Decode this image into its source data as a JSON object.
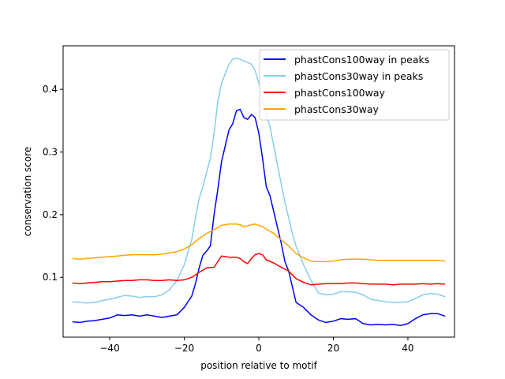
{
  "chart_data": {
    "type": "line",
    "xlabel": "position relative to motif",
    "ylabel": "conservation score",
    "xlim": [
      -52.5,
      52.5
    ],
    "ylim": [
      0.0045,
      0.4695
    ],
    "xticks": [
      -40,
      -20,
      0,
      20,
      40
    ],
    "xtick_labels": [
      "−40",
      "−20",
      "0",
      "20",
      "40"
    ],
    "yticks": [
      0.1,
      0.2,
      0.3,
      0.4
    ],
    "ytick_labels": [
      "0.1",
      "0.2",
      "0.3",
      "0.4"
    ],
    "grid": false,
    "legend_position": "top-right",
    "series": [
      {
        "name": "phastCons100way in peaks",
        "color": "#0000ff",
        "points": [
          [
            -50,
            0.029
          ],
          [
            -48,
            0.028
          ],
          [
            -46,
            0.03
          ],
          [
            -44,
            0.031
          ],
          [
            -42,
            0.033
          ],
          [
            -40,
            0.035
          ],
          [
            -38,
            0.04
          ],
          [
            -36,
            0.039
          ],
          [
            -34,
            0.04
          ],
          [
            -32,
            0.038
          ],
          [
            -30,
            0.04
          ],
          [
            -28,
            0.038
          ],
          [
            -26,
            0.036
          ],
          [
            -24,
            0.038
          ],
          [
            -22,
            0.04
          ],
          [
            -20,
            0.052
          ],
          [
            -18,
            0.07
          ],
          [
            -17,
            0.09
          ],
          [
            -16,
            0.115
          ],
          [
            -15,
            0.135
          ],
          [
            -14,
            0.142
          ],
          [
            -13,
            0.15
          ],
          [
            -12,
            0.2
          ],
          [
            -11,
            0.24
          ],
          [
            -10,
            0.285
          ],
          [
            -9,
            0.31
          ],
          [
            -8,
            0.335
          ],
          [
            -7,
            0.345
          ],
          [
            -6,
            0.366
          ],
          [
            -5,
            0.368
          ],
          [
            -4,
            0.355
          ],
          [
            -3,
            0.352
          ],
          [
            -2,
            0.36
          ],
          [
            -1,
            0.355
          ],
          [
            0,
            0.33
          ],
          [
            1,
            0.29
          ],
          [
            2,
            0.245
          ],
          [
            3,
            0.23
          ],
          [
            4,
            0.205
          ],
          [
            5,
            0.18
          ],
          [
            6,
            0.155
          ],
          [
            7,
            0.125
          ],
          [
            8,
            0.11
          ],
          [
            9,
            0.085
          ],
          [
            10,
            0.06
          ],
          [
            12,
            0.052
          ],
          [
            14,
            0.04
          ],
          [
            16,
            0.032
          ],
          [
            18,
            0.028
          ],
          [
            20,
            0.03
          ],
          [
            22,
            0.034
          ],
          [
            24,
            0.033
          ],
          [
            26,
            0.034
          ],
          [
            28,
            0.026
          ],
          [
            30,
            0.024
          ],
          [
            32,
            0.025
          ],
          [
            34,
            0.024
          ],
          [
            36,
            0.025
          ],
          [
            38,
            0.023
          ],
          [
            40,
            0.026
          ],
          [
            42,
            0.034
          ],
          [
            44,
            0.04
          ],
          [
            46,
            0.042
          ],
          [
            48,
            0.042
          ],
          [
            50,
            0.038
          ]
        ]
      },
      {
        "name": "phastCons30way in peaks",
        "color": "#87ceeb",
        "points": [
          [
            -50,
            0.061
          ],
          [
            -48,
            0.06
          ],
          [
            -46,
            0.059
          ],
          [
            -44,
            0.06
          ],
          [
            -42,
            0.063
          ],
          [
            -40,
            0.065
          ],
          [
            -38,
            0.068
          ],
          [
            -36,
            0.071
          ],
          [
            -34,
            0.07
          ],
          [
            -32,
            0.068
          ],
          [
            -30,
            0.069
          ],
          [
            -28,
            0.069
          ],
          [
            -26,
            0.072
          ],
          [
            -24,
            0.08
          ],
          [
            -22,
            0.095
          ],
          [
            -20,
            0.12
          ],
          [
            -19,
            0.14
          ],
          [
            -18,
            0.16
          ],
          [
            -17,
            0.195
          ],
          [
            -16,
            0.225
          ],
          [
            -15,
            0.245
          ],
          [
            -14,
            0.268
          ],
          [
            -13,
            0.29
          ],
          [
            -12,
            0.33
          ],
          [
            -11,
            0.38
          ],
          [
            -10,
            0.41
          ],
          [
            -9,
            0.425
          ],
          [
            -8,
            0.44
          ],
          [
            -7,
            0.448
          ],
          [
            -6,
            0.45
          ],
          [
            -5,
            0.448
          ],
          [
            -4,
            0.445
          ],
          [
            -3,
            0.443
          ],
          [
            -2,
            0.44
          ],
          [
            -1,
            0.43
          ],
          [
            0,
            0.41
          ],
          [
            1,
            0.385
          ],
          [
            2,
            0.36
          ],
          [
            3,
            0.34
          ],
          [
            4,
            0.31
          ],
          [
            5,
            0.28
          ],
          [
            6,
            0.25
          ],
          [
            7,
            0.22
          ],
          [
            8,
            0.195
          ],
          [
            9,
            0.17
          ],
          [
            10,
            0.15
          ],
          [
            12,
            0.12
          ],
          [
            14,
            0.095
          ],
          [
            16,
            0.075
          ],
          [
            18,
            0.072
          ],
          [
            20,
            0.073
          ],
          [
            22,
            0.077
          ],
          [
            24,
            0.077
          ],
          [
            26,
            0.076
          ],
          [
            28,
            0.072
          ],
          [
            30,
            0.065
          ],
          [
            32,
            0.063
          ],
          [
            34,
            0.061
          ],
          [
            36,
            0.06
          ],
          [
            38,
            0.06
          ],
          [
            40,
            0.061
          ],
          [
            42,
            0.066
          ],
          [
            44,
            0.072
          ],
          [
            46,
            0.074
          ],
          [
            48,
            0.073
          ],
          [
            50,
            0.069
          ]
        ]
      },
      {
        "name": "phastCons100way",
        "color": "#ff0000",
        "points": [
          [
            -50,
            0.091
          ],
          [
            -48,
            0.09
          ],
          [
            -46,
            0.091
          ],
          [
            -44,
            0.092
          ],
          [
            -42,
            0.093
          ],
          [
            -40,
            0.093
          ],
          [
            -38,
            0.094
          ],
          [
            -36,
            0.095
          ],
          [
            -34,
            0.095
          ],
          [
            -32,
            0.096
          ],
          [
            -30,
            0.096
          ],
          [
            -28,
            0.095
          ],
          [
            -26,
            0.095
          ],
          [
            -24,
            0.096
          ],
          [
            -22,
            0.095
          ],
          [
            -20,
            0.096
          ],
          [
            -18,
            0.1
          ],
          [
            -16,
            0.108
          ],
          [
            -14,
            0.115
          ],
          [
            -12,
            0.116
          ],
          [
            -10,
            0.134
          ],
          [
            -8,
            0.132
          ],
          [
            -6,
            0.132
          ],
          [
            -5,
            0.13
          ],
          [
            -4,
            0.125
          ],
          [
            -3,
            0.122
          ],
          [
            -2,
            0.13
          ],
          [
            -1,
            0.136
          ],
          [
            0,
            0.138
          ],
          [
            1,
            0.136
          ],
          [
            2,
            0.128
          ],
          [
            4,
            0.123
          ],
          [
            6,
            0.116
          ],
          [
            8,
            0.11
          ],
          [
            10,
            0.098
          ],
          [
            12,
            0.092
          ],
          [
            14,
            0.088
          ],
          [
            16,
            0.089
          ],
          [
            18,
            0.09
          ],
          [
            20,
            0.09
          ],
          [
            22,
            0.09
          ],
          [
            24,
            0.091
          ],
          [
            26,
            0.091
          ],
          [
            28,
            0.09
          ],
          [
            30,
            0.089
          ],
          [
            32,
            0.089
          ],
          [
            34,
            0.089
          ],
          [
            36,
            0.088
          ],
          [
            38,
            0.089
          ],
          [
            40,
            0.089
          ],
          [
            42,
            0.089
          ],
          [
            44,
            0.09
          ],
          [
            46,
            0.089
          ],
          [
            48,
            0.09
          ],
          [
            50,
            0.089
          ]
        ]
      },
      {
        "name": "phastCons30way",
        "color": "#ffa500",
        "points": [
          [
            -50,
            0.13
          ],
          [
            -48,
            0.129
          ],
          [
            -46,
            0.13
          ],
          [
            -44,
            0.131
          ],
          [
            -42,
            0.132
          ],
          [
            -40,
            0.133
          ],
          [
            -38,
            0.134
          ],
          [
            -36,
            0.135
          ],
          [
            -34,
            0.136
          ],
          [
            -32,
            0.136
          ],
          [
            -30,
            0.136
          ],
          [
            -28,
            0.136
          ],
          [
            -26,
            0.137
          ],
          [
            -24,
            0.139
          ],
          [
            -22,
            0.141
          ],
          [
            -20,
            0.145
          ],
          [
            -18,
            0.152
          ],
          [
            -16,
            0.162
          ],
          [
            -14,
            0.17
          ],
          [
            -12,
            0.176
          ],
          [
            -10,
            0.183
          ],
          [
            -8,
            0.185
          ],
          [
            -6,
            0.185
          ],
          [
            -5,
            0.184
          ],
          [
            -4,
            0.181
          ],
          [
            -3,
            0.182
          ],
          [
            -2,
            0.184
          ],
          [
            -1,
            0.185
          ],
          [
            0,
            0.183
          ],
          [
            1,
            0.181
          ],
          [
            2,
            0.177
          ],
          [
            4,
            0.17
          ],
          [
            6,
            0.16
          ],
          [
            8,
            0.15
          ],
          [
            10,
            0.138
          ],
          [
            12,
            0.131
          ],
          [
            14,
            0.126
          ],
          [
            16,
            0.125
          ],
          [
            18,
            0.125
          ],
          [
            20,
            0.126
          ],
          [
            22,
            0.128
          ],
          [
            24,
            0.129
          ],
          [
            26,
            0.129
          ],
          [
            28,
            0.129
          ],
          [
            30,
            0.128
          ],
          [
            32,
            0.127
          ],
          [
            34,
            0.127
          ],
          [
            36,
            0.127
          ],
          [
            38,
            0.127
          ],
          [
            40,
            0.127
          ],
          [
            42,
            0.127
          ],
          [
            44,
            0.127
          ],
          [
            46,
            0.127
          ],
          [
            48,
            0.127
          ],
          [
            50,
            0.126
          ]
        ]
      }
    ]
  }
}
